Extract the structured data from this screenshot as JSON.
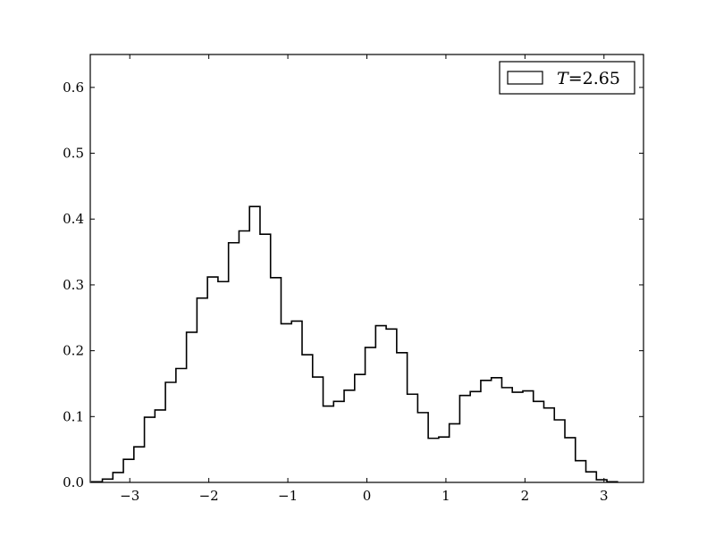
{
  "chart_data": {
    "type": "histogram",
    "title": "",
    "xlabel": "",
    "ylabel": "",
    "xlim": [
      -3.5,
      3.5
    ],
    "ylim": [
      0.0,
      0.65
    ],
    "grid": false,
    "legend": {
      "placement": "upper-right",
      "entries": [
        {
          "label_var": "T",
          "label_eq": "=",
          "label_val": "2.65",
          "label": "T = 2.65",
          "style": "outline"
        }
      ]
    },
    "xticks": [
      -3,
      -2,
      -1,
      0,
      1,
      2,
      3
    ],
    "xtick_labels": [
      "−3",
      "−2",
      "−1",
      "0",
      "1",
      "2",
      "3"
    ],
    "yticks": [
      0.0,
      0.1,
      0.2,
      0.3,
      0.4,
      0.5,
      0.6
    ],
    "ytick_labels": [
      "0.0",
      "0.1",
      "0.2",
      "0.3",
      "0.4",
      "0.5",
      "0.6"
    ],
    "bins": {
      "start": -3.48,
      "width": 0.133,
      "values": [
        0.001,
        0.005,
        0.015,
        0.035,
        0.054,
        0.099,
        0.11,
        0.152,
        0.173,
        0.228,
        0.28,
        0.312,
        0.305,
        0.364,
        0.382,
        0.419,
        0.377,
        0.311,
        0.241,
        0.245,
        0.194,
        0.16,
        0.116,
        0.123,
        0.14,
        0.164,
        0.205,
        0.238,
        0.233,
        0.197,
        0.134,
        0.106,
        0.067,
        0.069,
        0.089,
        0.132,
        0.138,
        0.155,
        0.159,
        0.144,
        0.137,
        0.139,
        0.123,
        0.113,
        0.095,
        0.068,
        0.033,
        0.016,
        0.004,
        0.001
      ]
    }
  }
}
